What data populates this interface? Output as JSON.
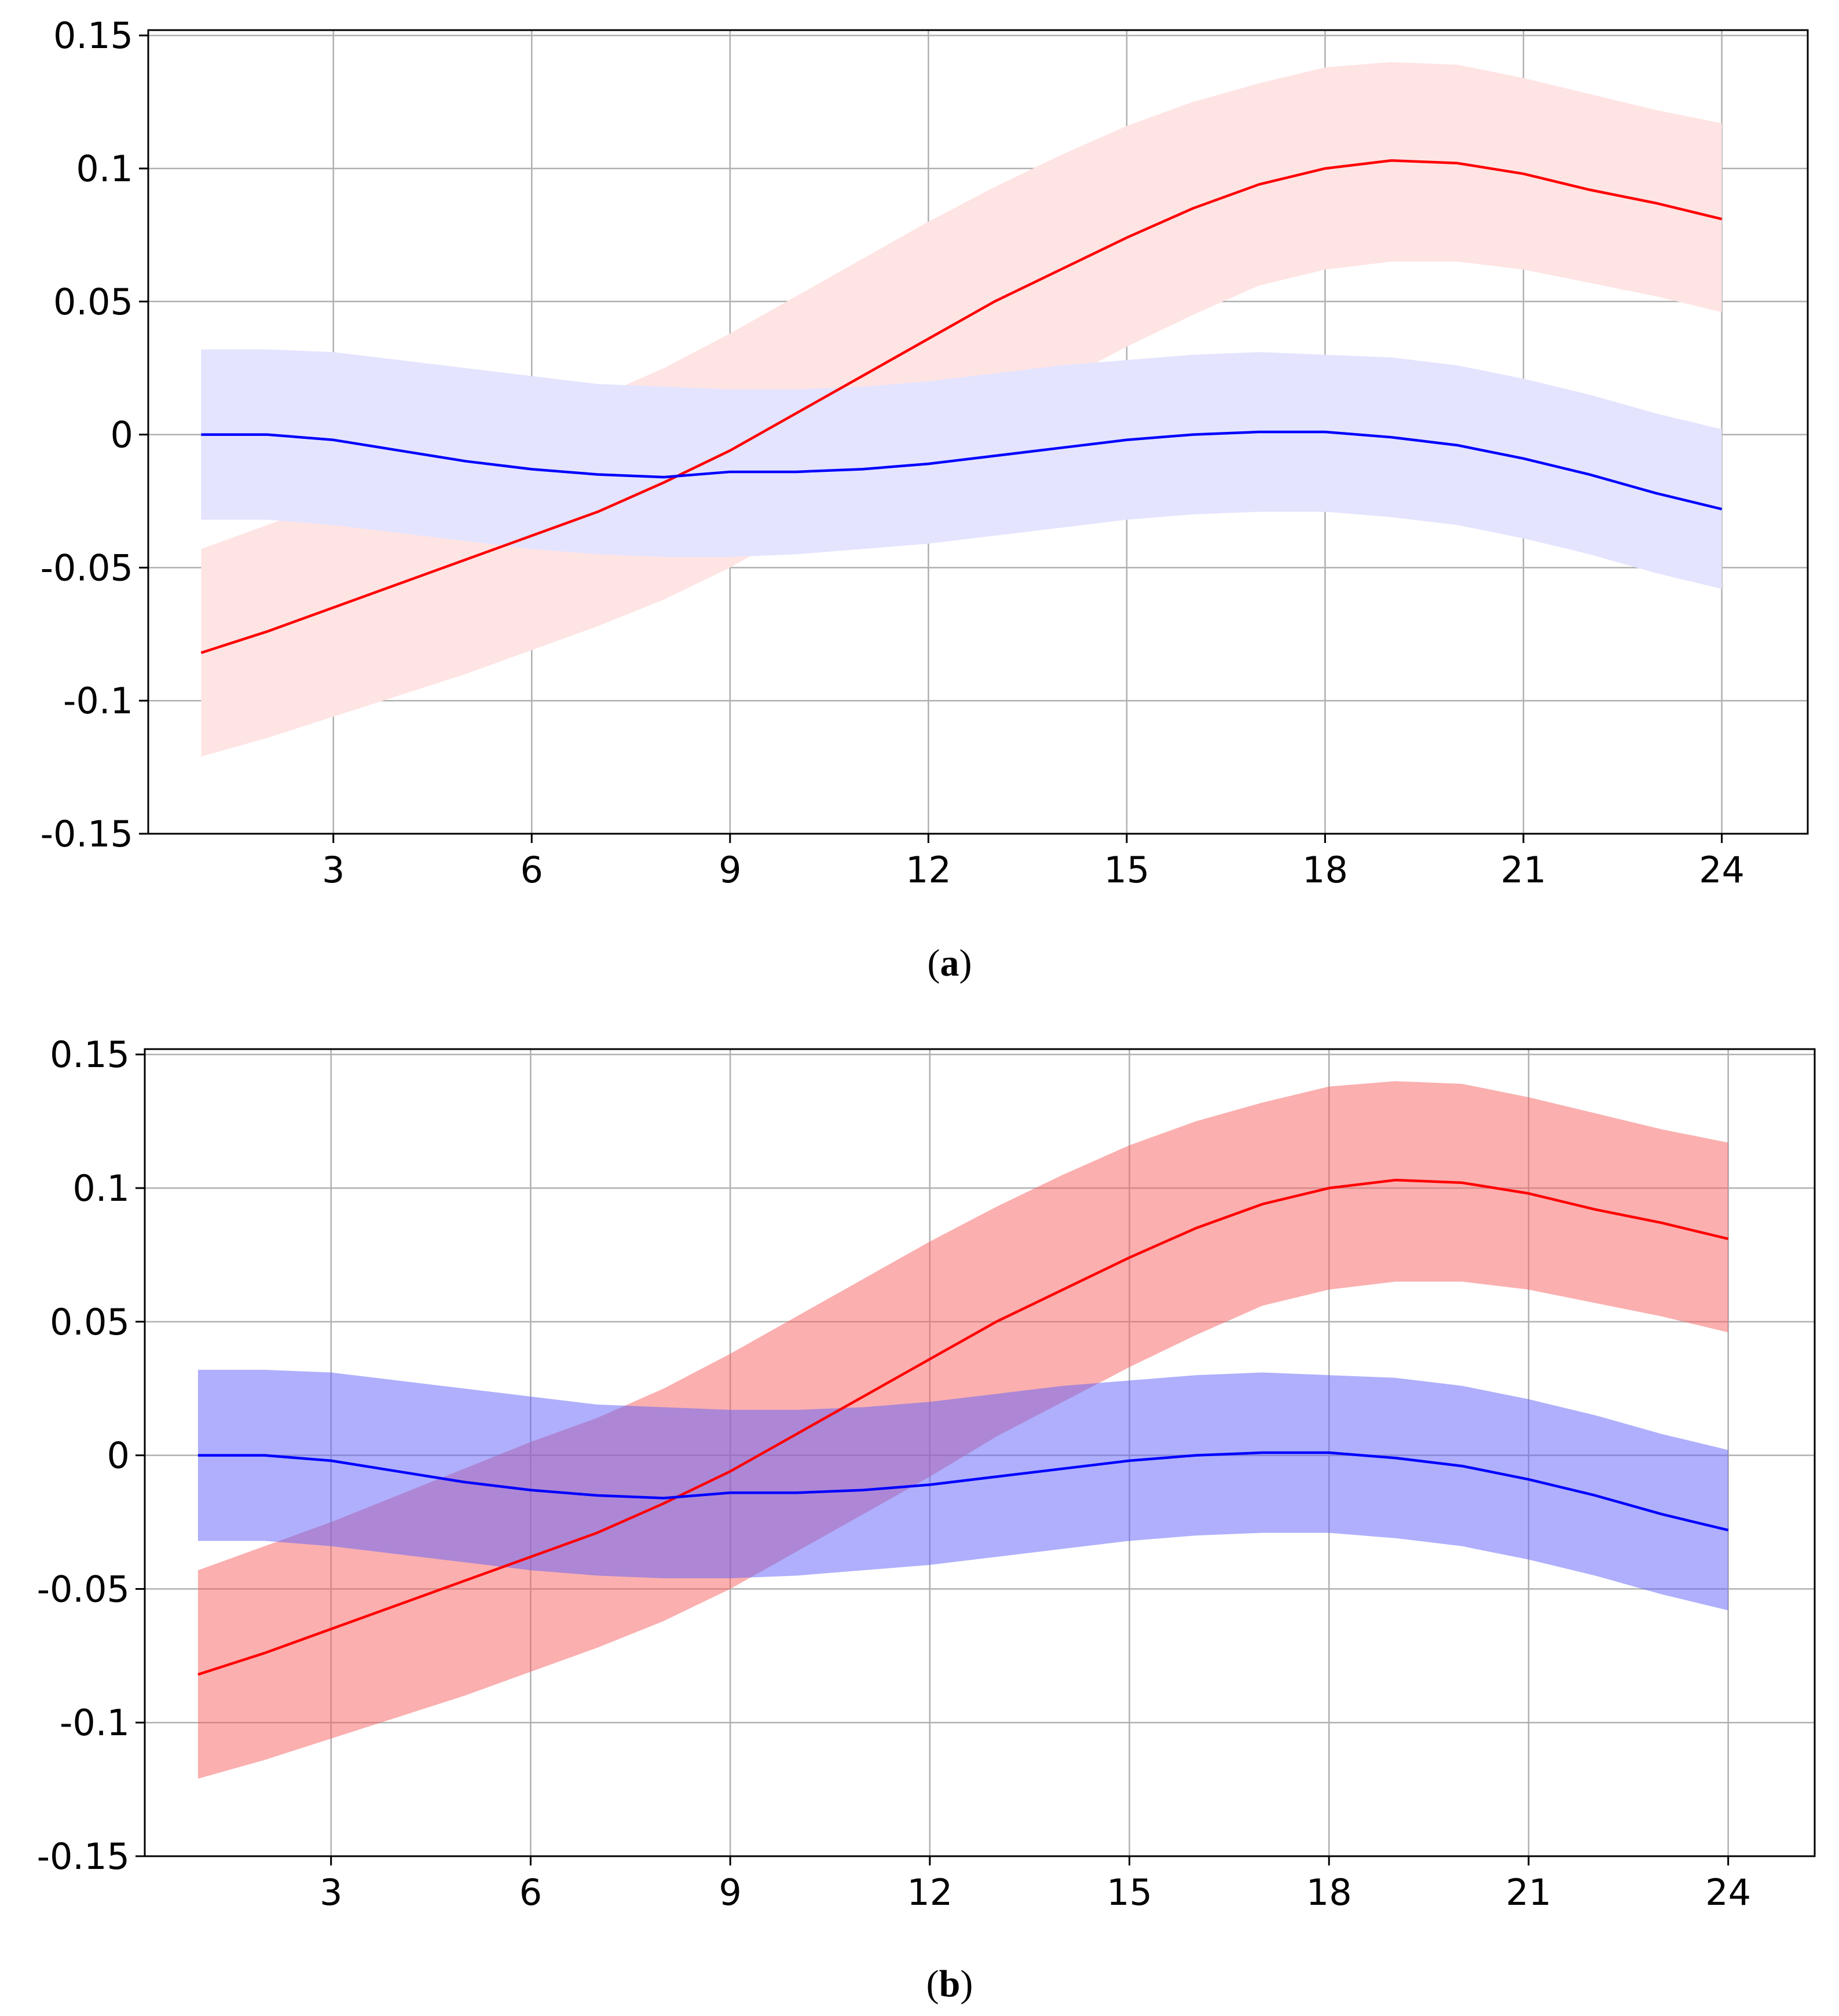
{
  "figure": {
    "panels": [
      {
        "id": "a",
        "caption_open": "(",
        "caption_letter": "a",
        "caption_close": ")"
      },
      {
        "id": "b",
        "caption_open": "(",
        "caption_letter": "b",
        "caption_close": ")"
      }
    ]
  },
  "colors": {
    "red_line": "#ff0000",
    "blue_line": "#0000ff",
    "grid": "#b0b0b0",
    "axis": "#000000"
  },
  "chart_data": [
    {
      "type": "line",
      "panel": "a",
      "title": "",
      "xlabel": "",
      "ylabel": "",
      "x": [
        1,
        2,
        3,
        4,
        5,
        6,
        7,
        8,
        9,
        10,
        11,
        12,
        13,
        14,
        15,
        16,
        17,
        18,
        19,
        20,
        21,
        22,
        23,
        24
      ],
      "xlim": [
        0.2,
        25.3
      ],
      "ylim": [
        -0.15,
        0.152
      ],
      "xticks": [
        3,
        6,
        9,
        12,
        15,
        18,
        21,
        24
      ],
      "xtick_labels": [
        "3",
        "6",
        "9",
        "12",
        "15",
        "18",
        "21",
        "24"
      ],
      "yticks": [
        -0.15,
        -0.1,
        -0.05,
        0,
        0.05,
        0.1,
        0.15
      ],
      "ytick_labels": [
        "-0.15",
        "-0.1",
        "-0.05",
        "0",
        "0.05",
        "0.1",
        "0.15"
      ],
      "grid": true,
      "series": [
        {
          "name": "red",
          "color": "#ff0000",
          "band_color": "#ffe4e4",
          "band_opacity": 1,
          "values": [
            -0.082,
            -0.074,
            -0.065,
            -0.056,
            -0.047,
            -0.038,
            -0.029,
            -0.018,
            -0.006,
            0.008,
            0.022,
            0.036,
            0.05,
            0.062,
            0.074,
            0.085,
            0.094,
            0.1,
            0.103,
            0.102,
            0.098,
            0.092,
            0.087,
            0.081
          ],
          "upper": [
            -0.043,
            -0.034,
            -0.025,
            -0.015,
            -0.005,
            0.005,
            0.014,
            0.025,
            0.038,
            0.052,
            0.066,
            0.08,
            0.093,
            0.105,
            0.116,
            0.125,
            0.132,
            0.138,
            0.14,
            0.139,
            0.134,
            0.128,
            0.122,
            0.117
          ],
          "lower": [
            -0.121,
            -0.114,
            -0.106,
            -0.098,
            -0.09,
            -0.081,
            -0.072,
            -0.062,
            -0.05,
            -0.036,
            -0.022,
            -0.008,
            0.007,
            0.02,
            0.033,
            0.045,
            0.056,
            0.062,
            0.065,
            0.065,
            0.062,
            0.057,
            0.052,
            0.046
          ]
        },
        {
          "name": "blue",
          "color": "#0000ff",
          "band_color": "#e4e4ff",
          "band_opacity": 1,
          "values": [
            0.0,
            0.0,
            -0.002,
            -0.006,
            -0.01,
            -0.013,
            -0.015,
            -0.016,
            -0.014,
            -0.014,
            -0.013,
            -0.011,
            -0.008,
            -0.005,
            -0.002,
            0.0,
            0.001,
            0.001,
            -0.001,
            -0.004,
            -0.009,
            -0.015,
            -0.022,
            -0.028
          ],
          "upper": [
            0.032,
            0.032,
            0.031,
            0.028,
            0.025,
            0.022,
            0.019,
            0.018,
            0.017,
            0.017,
            0.018,
            0.02,
            0.023,
            0.026,
            0.028,
            0.03,
            0.031,
            0.03,
            0.029,
            0.026,
            0.021,
            0.015,
            0.008,
            0.002
          ],
          "lower": [
            -0.032,
            -0.032,
            -0.034,
            -0.037,
            -0.04,
            -0.043,
            -0.045,
            -0.046,
            -0.046,
            -0.045,
            -0.043,
            -0.041,
            -0.038,
            -0.035,
            -0.032,
            -0.03,
            -0.029,
            -0.029,
            -0.031,
            -0.034,
            -0.039,
            -0.045,
            -0.052,
            -0.058
          ]
        }
      ]
    },
    {
      "type": "line",
      "panel": "b",
      "title": "",
      "xlabel": "",
      "ylabel": "",
      "x": [
        1,
        2,
        3,
        4,
        5,
        6,
        7,
        8,
        9,
        10,
        11,
        12,
        13,
        14,
        15,
        16,
        17,
        18,
        19,
        20,
        21,
        22,
        23,
        24
      ],
      "xlim": [
        0.2,
        25.3
      ],
      "ylim": [
        -0.15,
        0.152
      ],
      "xticks": [
        3,
        6,
        9,
        12,
        15,
        18,
        21,
        24
      ],
      "xtick_labels": [
        "3",
        "6",
        "9",
        "12",
        "15",
        "18",
        "21",
        "24"
      ],
      "yticks": [
        -0.15,
        -0.1,
        -0.05,
        0,
        0.05,
        0.1,
        0.15
      ],
      "ytick_labels": [
        "-0.15",
        "-0.1",
        "-0.05",
        "0",
        "0.05",
        "0.1",
        "0.15"
      ],
      "grid": true,
      "series": [
        {
          "name": "red",
          "color": "#ff0000",
          "band_color": "#f86060",
          "band_opacity": 0.5,
          "values": [
            -0.082,
            -0.074,
            -0.065,
            -0.056,
            -0.047,
            -0.038,
            -0.029,
            -0.018,
            -0.006,
            0.008,
            0.022,
            0.036,
            0.05,
            0.062,
            0.074,
            0.085,
            0.094,
            0.1,
            0.103,
            0.102,
            0.098,
            0.092,
            0.087,
            0.081
          ],
          "upper": [
            -0.043,
            -0.034,
            -0.025,
            -0.015,
            -0.005,
            0.005,
            0.014,
            0.025,
            0.038,
            0.052,
            0.066,
            0.08,
            0.093,
            0.105,
            0.116,
            0.125,
            0.132,
            0.138,
            0.14,
            0.139,
            0.134,
            0.128,
            0.122,
            0.117
          ],
          "lower": [
            -0.121,
            -0.114,
            -0.106,
            -0.098,
            -0.09,
            -0.081,
            -0.072,
            -0.062,
            -0.05,
            -0.036,
            -0.022,
            -0.008,
            0.007,
            0.02,
            0.033,
            0.045,
            0.056,
            0.062,
            0.065,
            0.065,
            0.062,
            0.057,
            0.052,
            0.046
          ]
        },
        {
          "name": "blue",
          "color": "#0000ff",
          "band_color": "#6060fc",
          "band_opacity": 0.5,
          "values": [
            0.0,
            0.0,
            -0.002,
            -0.006,
            -0.01,
            -0.013,
            -0.015,
            -0.016,
            -0.014,
            -0.014,
            -0.013,
            -0.011,
            -0.008,
            -0.005,
            -0.002,
            0.0,
            0.001,
            0.001,
            -0.001,
            -0.004,
            -0.009,
            -0.015,
            -0.022,
            -0.028
          ],
          "upper": [
            0.032,
            0.032,
            0.031,
            0.028,
            0.025,
            0.022,
            0.019,
            0.018,
            0.017,
            0.017,
            0.018,
            0.02,
            0.023,
            0.026,
            0.028,
            0.03,
            0.031,
            0.03,
            0.029,
            0.026,
            0.021,
            0.015,
            0.008,
            0.002
          ],
          "lower": [
            -0.032,
            -0.032,
            -0.034,
            -0.037,
            -0.04,
            -0.043,
            -0.045,
            -0.046,
            -0.046,
            -0.045,
            -0.043,
            -0.041,
            -0.038,
            -0.035,
            -0.032,
            -0.03,
            -0.029,
            -0.029,
            -0.031,
            -0.034,
            -0.039,
            -0.045,
            -0.052,
            -0.058
          ]
        }
      ]
    }
  ]
}
